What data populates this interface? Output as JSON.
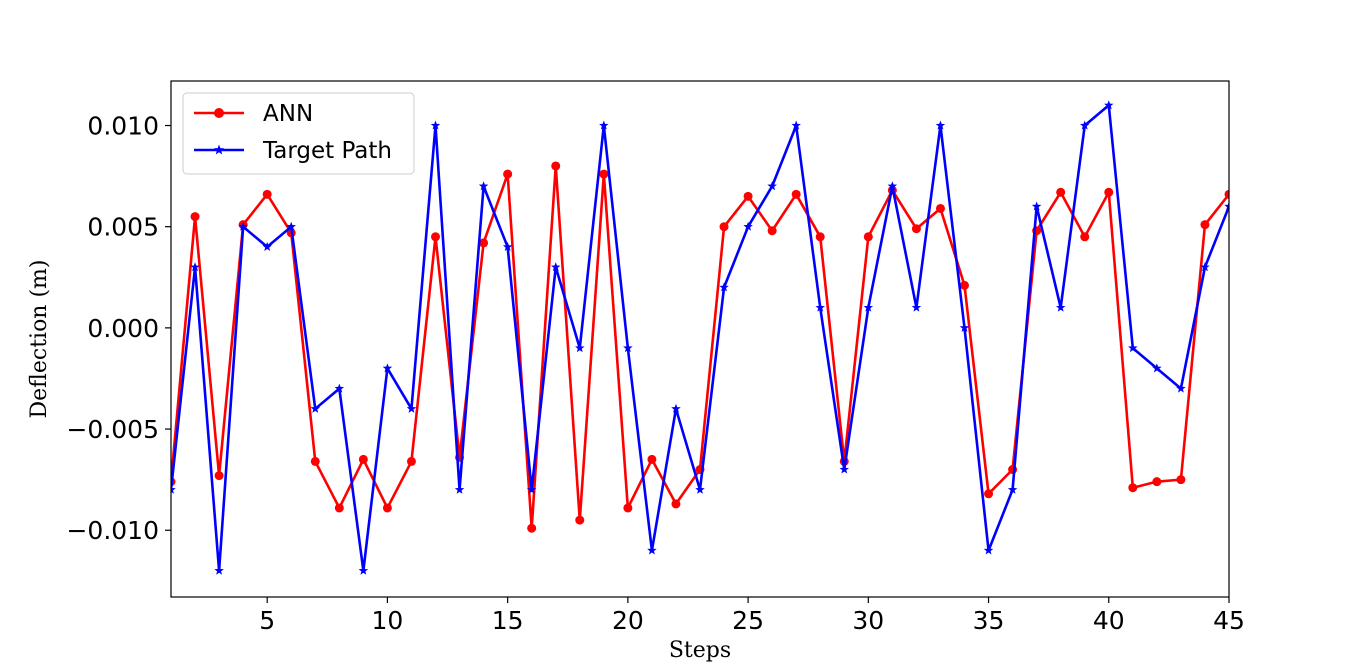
{
  "chart_data": {
    "type": "line",
    "xlabel": "Steps",
    "ylabel": "Deflection (m)",
    "xlim": [
      1,
      45
    ],
    "ylim": [
      -0.0133,
      0.0122
    ],
    "xticks": [
      5,
      10,
      15,
      20,
      25,
      30,
      35,
      40,
      45
    ],
    "xtick_labels": [
      "5",
      "10",
      "15",
      "20",
      "25",
      "30",
      "35",
      "40",
      "45"
    ],
    "yticks": [
      -0.01,
      -0.005,
      0.0,
      0.005,
      0.01
    ],
    "ytick_labels": [
      "−0.010",
      "−0.005",
      "0.000",
      "0.005",
      "0.010"
    ],
    "grid": false,
    "legend_position": "top-left",
    "x": [
      1,
      2,
      3,
      4,
      5,
      6,
      7,
      8,
      9,
      10,
      11,
      12,
      13,
      14,
      15,
      16,
      17,
      18,
      19,
      20,
      21,
      22,
      23,
      24,
      25,
      26,
      27,
      28,
      29,
      30,
      31,
      32,
      33,
      34,
      35,
      36,
      37,
      38,
      39,
      40,
      41,
      42,
      43,
      44,
      45
    ],
    "series": [
      {
        "name": "ANN",
        "color": "#ff0000",
        "marker": "circle",
        "values": [
          -0.0076,
          0.0055,
          -0.0073,
          0.0051,
          0.0066,
          0.0047,
          -0.0066,
          -0.0089,
          -0.0065,
          -0.0089,
          -0.0066,
          0.0045,
          -0.0064,
          0.0042,
          0.0076,
          -0.0099,
          0.008,
          -0.0095,
          0.0076,
          -0.0089,
          -0.0065,
          -0.0087,
          -0.007,
          0.005,
          0.0065,
          0.0048,
          0.0066,
          0.0045,
          -0.0066,
          0.0045,
          0.0068,
          0.0049,
          0.0059,
          0.0021,
          -0.0082,
          -0.007,
          0.0048,
          0.0067,
          0.0045,
          0.0067,
          -0.0079,
          -0.0076,
          -0.0075,
          0.0051,
          0.0066
        ]
      },
      {
        "name": "Target Path",
        "color": "#0000ff",
        "marker": "star",
        "values": [
          -0.008,
          0.003,
          -0.012,
          0.005,
          0.004,
          0.005,
          -0.004,
          -0.003,
          -0.012,
          -0.002,
          -0.004,
          0.01,
          -0.008,
          0.007,
          0.004,
          -0.008,
          0.003,
          -0.001,
          0.01,
          -0.001,
          -0.011,
          -0.004,
          -0.008,
          0.002,
          0.005,
          0.007,
          0.01,
          0.001,
          -0.007,
          0.001,
          0.007,
          0.001,
          0.01,
          0.0,
          -0.011,
          -0.008,
          0.006,
          0.001,
          0.01,
          0.011,
          -0.001,
          -0.002,
          -0.003,
          0.003,
          0.006
        ]
      }
    ]
  }
}
